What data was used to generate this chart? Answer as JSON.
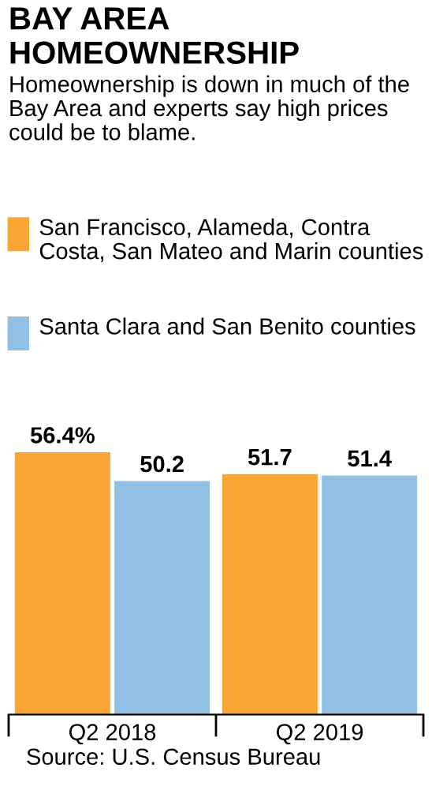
{
  "chart_data": {
    "type": "bar",
    "title": "BAY AREA HOMEOWNERSHIP",
    "subtitle": "Homeownership is down in much of the Bay Area and experts say high prices could be to blame.",
    "categories": [
      "Q2 2018",
      "Q2 2019"
    ],
    "series": [
      {
        "name": "San Francisco, Alameda, Contra Costa, San Mateo and Marin counties",
        "color": "#f9a635",
        "values": [
          56.4,
          51.7
        ],
        "value_labels": [
          "56.4%",
          "51.7"
        ]
      },
      {
        "name": "Santa Clara and San Benito counties",
        "color": "#90c1e4",
        "values": [
          50.2,
          51.4
        ],
        "value_labels": [
          "50.2",
          "51.4"
        ]
      }
    ],
    "legend": "top",
    "grid": false,
    "annotations": [
      "Source: U.S. Census Bureau"
    ]
  }
}
